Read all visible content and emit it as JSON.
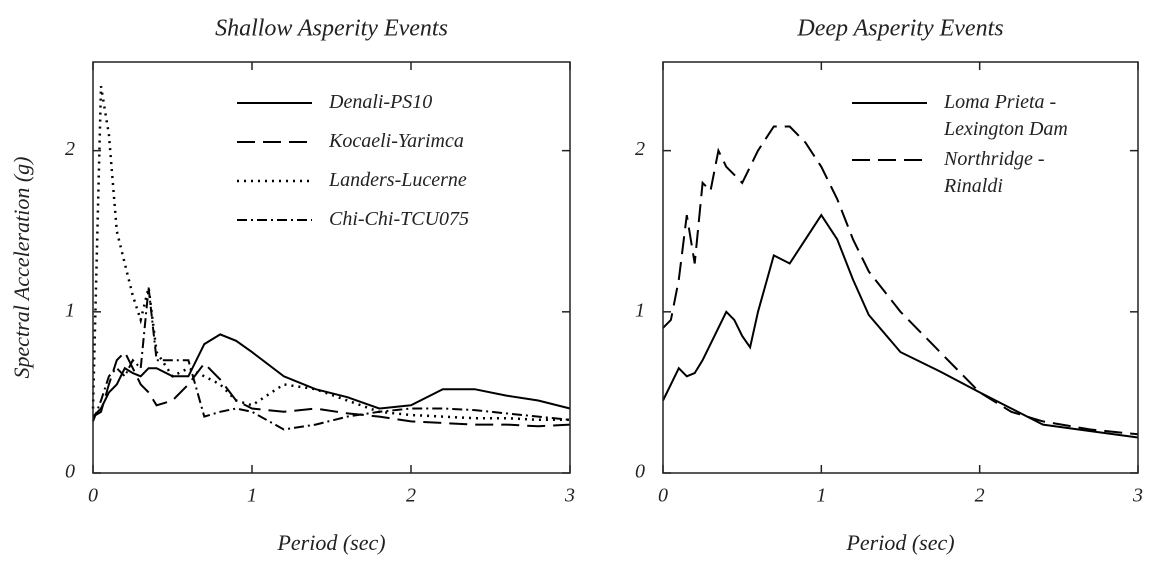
{
  "chart_data": [
    {
      "type": "line",
      "title": "Shallow Asperity Events",
      "xlabel": "Period (sec)",
      "ylabel": "Spectral Acceleration (g)",
      "x": [
        0,
        0.05,
        0.1,
        0.15,
        0.2,
        0.25,
        0.3,
        0.35,
        0.4,
        0.5,
        0.6,
        0.7,
        0.8,
        0.9,
        1.0,
        1.2,
        1.4,
        1.6,
        1.8,
        2.0,
        2.2,
        2.4,
        2.6,
        2.8,
        3.0
      ],
      "series": [
        {
          "name": "Denali-PS10",
          "color": "#000000",
          "dash": "solid",
          "values": [
            0.35,
            0.4,
            0.5,
            0.55,
            0.65,
            0.62,
            0.6,
            0.65,
            0.65,
            0.6,
            0.6,
            0.8,
            0.86,
            0.82,
            0.75,
            0.6,
            0.52,
            0.47,
            0.4,
            0.42,
            0.52,
            0.52,
            0.48,
            0.45,
            0.4
          ]
        },
        {
          "name": "Kocaeli-Yarimca",
          "color": "#000000",
          "dash": "dashed",
          "values": [
            0.35,
            0.38,
            0.55,
            0.7,
            0.75,
            0.65,
            0.55,
            0.5,
            0.42,
            0.45,
            0.55,
            0.68,
            0.58,
            0.45,
            0.4,
            0.38,
            0.4,
            0.37,
            0.35,
            0.32,
            0.31,
            0.3,
            0.3,
            0.29,
            0.3
          ]
        },
        {
          "name": "Landers-Lucerne",
          "color": "#000000",
          "dash": "dotted",
          "values": [
            0.4,
            2.4,
            2.1,
            1.5,
            1.3,
            1.1,
            0.95,
            1.15,
            0.75,
            0.6,
            0.65,
            0.6,
            0.55,
            0.45,
            0.42,
            0.55,
            0.52,
            0.45,
            0.38,
            0.36,
            0.35,
            0.34,
            0.34,
            0.33,
            0.33
          ]
        },
        {
          "name": "Chi-Chi-TCU075",
          "color": "#000000",
          "dash": "dashdot",
          "values": [
            0.32,
            0.45,
            0.6,
            0.65,
            0.6,
            0.7,
            0.65,
            1.15,
            0.7,
            0.7,
            0.7,
            0.35,
            0.38,
            0.4,
            0.38,
            0.27,
            0.3,
            0.35,
            0.38,
            0.4,
            0.4,
            0.39,
            0.37,
            0.35,
            0.33
          ]
        }
      ],
      "xlim": [
        0,
        3
      ],
      "xticks": [
        0,
        1,
        2,
        3
      ],
      "ylim": [
        0,
        2.55
      ],
      "yticks": [
        0,
        1,
        2
      ],
      "legend": "upper right"
    },
    {
      "type": "line",
      "title": "Deep Asperity Events",
      "xlabel": "Period (sec)",
      "x": [
        0,
        0.05,
        0.1,
        0.15,
        0.2,
        0.25,
        0.3,
        0.35,
        0.4,
        0.45,
        0.5,
        0.55,
        0.6,
        0.7,
        0.8,
        0.9,
        1.0,
        1.1,
        1.2,
        1.3,
        1.5,
        1.75,
        2.0,
        2.2,
        2.4,
        2.7,
        3.0
      ],
      "series": [
        {
          "name": "Loma Prieta - Lexington Dam",
          "color": "#000000",
          "dash": "solid",
          "values": [
            0.45,
            0.55,
            0.65,
            0.6,
            0.62,
            0.7,
            0.8,
            0.9,
            1.0,
            0.95,
            0.85,
            0.78,
            1.0,
            1.35,
            1.3,
            1.45,
            1.6,
            1.45,
            1.2,
            0.98,
            0.75,
            0.63,
            0.5,
            0.4,
            0.3,
            0.26,
            0.22
          ]
        },
        {
          "name": "Northridge - Rinaldi",
          "color": "#000000",
          "dash": "dashed",
          "values": [
            0.9,
            0.95,
            1.2,
            1.6,
            1.3,
            1.8,
            1.75,
            2.0,
            1.9,
            1.85,
            1.8,
            1.9,
            2.0,
            2.15,
            2.15,
            2.05,
            1.9,
            1.7,
            1.45,
            1.25,
            1.0,
            0.75,
            0.5,
            0.38,
            0.32,
            0.27,
            0.24
          ]
        }
      ],
      "xlim": [
        0,
        3
      ],
      "xticks": [
        0,
        1,
        2,
        3
      ],
      "ylim": [
        0,
        2.55
      ],
      "yticks": [
        0,
        1,
        2
      ],
      "legend": "upper right"
    }
  ]
}
